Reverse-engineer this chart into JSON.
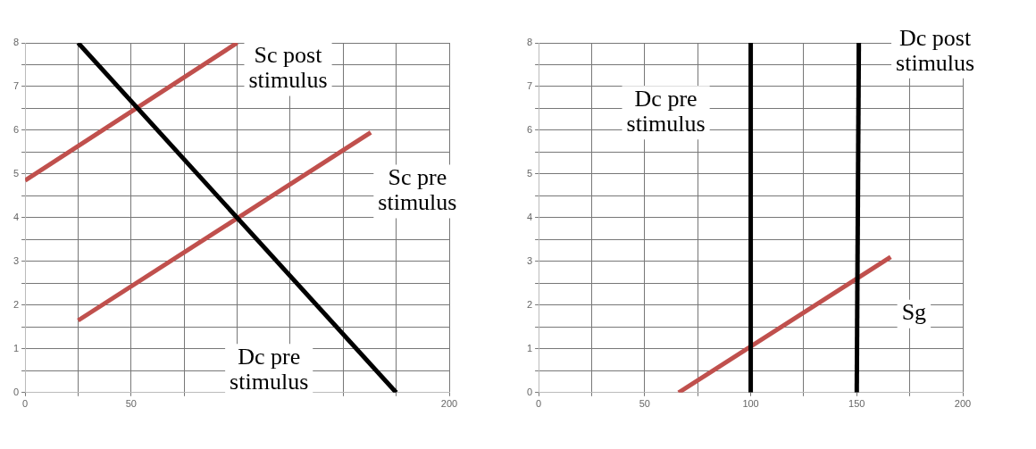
{
  "chart_data": [
    {
      "type": "line",
      "xlim": [
        0,
        200
      ],
      "ylim": [
        0,
        8
      ],
      "xticks": [
        0,
        {
          "value": 25,
          "label": null
        },
        50,
        {
          "value": 75,
          "label": null
        },
        {
          "value": 100,
          "label": null
        },
        {
          "value": 125,
          "label": null
        },
        {
          "value": 150,
          "label": null
        },
        {
          "value": 175,
          "label": null
        },
        200
      ],
      "yticks": [
        0,
        {
          "value": 0.5,
          "label": null
        },
        1,
        {
          "value": 1.5,
          "label": null
        },
        2,
        {
          "value": 2.5,
          "label": null
        },
        3,
        {
          "value": 3.5,
          "label": null
        },
        4,
        {
          "value": 4.5,
          "label": null
        },
        5,
        {
          "value": 5.5,
          "label": null
        },
        6,
        {
          "value": 6.5,
          "label": null
        },
        7,
        {
          "value": 7.5,
          "label": null
        },
        8
      ],
      "grid": true,
      "series": [
        {
          "name": "Dc pre stimulus",
          "color": "#000000",
          "x": [
            25,
            175
          ],
          "values": [
            8,
            0
          ]
        },
        {
          "name": "Sc post stimulus",
          "color": "#c0504d",
          "x": [
            0,
            100
          ],
          "values": [
            4.85,
            8
          ]
        },
        {
          "name": "Sc pre stimulus",
          "color": "#c0504d",
          "x": [
            25,
            163
          ],
          "values": [
            1.65,
            5.95
          ]
        }
      ]
    },
    {
      "type": "line",
      "xlim": [
        0,
        200
      ],
      "ylim": [
        0,
        8
      ],
      "xticks": [
        0,
        {
          "value": 25,
          "label": null
        },
        50,
        {
          "value": 75,
          "label": null
        },
        100,
        {
          "value": 125,
          "label": null
        },
        150,
        {
          "value": 175,
          "label": null
        },
        200
      ],
      "yticks": [
        0,
        {
          "value": 0.5,
          "label": null
        },
        1,
        {
          "value": 1.5,
          "label": null
        },
        2,
        {
          "value": 2.5,
          "label": null
        },
        3,
        {
          "value": 3.5,
          "label": null
        },
        4,
        {
          "value": 4.5,
          "label": null
        },
        5,
        {
          "value": 5.5,
          "label": null
        },
        6,
        {
          "value": 6.5,
          "label": null
        },
        7,
        {
          "value": 7.5,
          "label": null
        },
        8
      ],
      "grid": true,
      "series": [
        {
          "name": "Dc pre stimulus",
          "color": "#000000",
          "x": [
            100,
            100
          ],
          "values": [
            0,
            8
          ]
        },
        {
          "name": "Dc post stimulus",
          "color": "#000000",
          "x": [
            150,
            151
          ],
          "values": [
            0,
            8
          ]
        },
        {
          "name": "Sg",
          "color": "#c0504d",
          "x": [
            66,
            166
          ],
          "values": [
            0,
            3.1
          ]
        }
      ]
    }
  ]
}
